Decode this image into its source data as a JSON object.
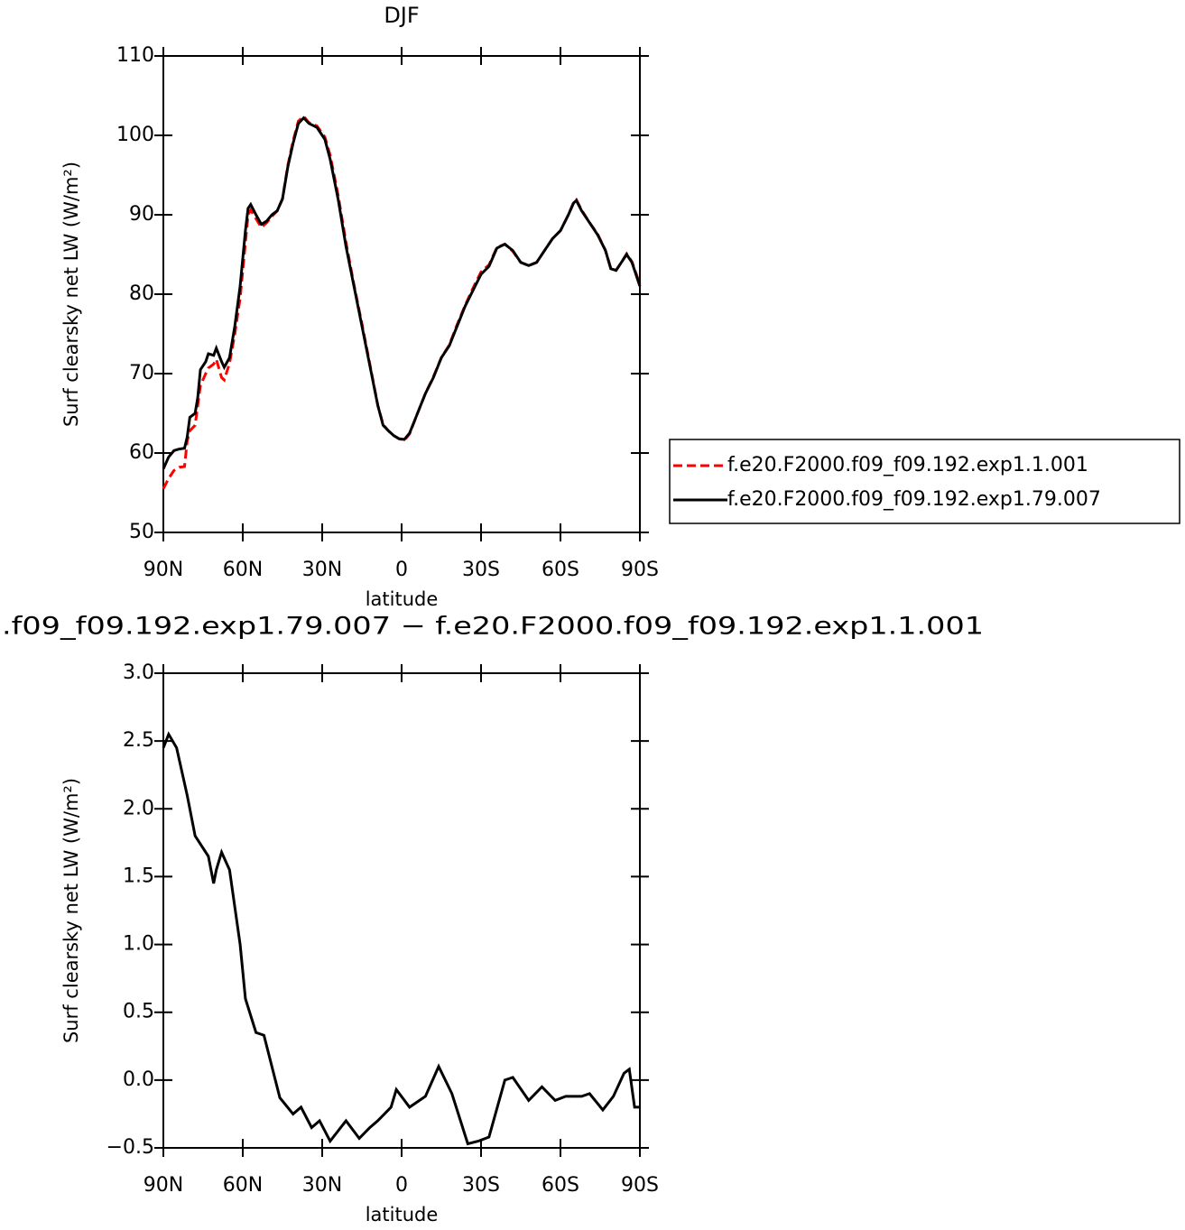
{
  "chart_data": [
    {
      "type": "line",
      "title": "DJF",
      "x_label": "latitude",
      "y_label": "Surf clearsky net LW (W/m²)",
      "x": [
        90,
        88,
        86,
        84,
        82,
        81,
        80,
        78,
        77,
        76,
        74,
        73,
        71,
        70,
        68,
        67,
        65,
        63,
        61,
        59,
        58,
        57,
        55,
        53,
        51,
        49,
        47,
        45,
        43,
        41,
        39,
        37,
        35,
        32,
        29,
        27,
        24,
        21,
        18,
        15,
        12,
        9,
        7,
        5,
        3,
        1,
        -1,
        -3,
        -6,
        -9,
        -12,
        -15,
        -18,
        -21,
        -24,
        -27,
        -30,
        -33,
        -36,
        -39,
        -42,
        -45,
        -48,
        -51,
        -54,
        -57,
        -60,
        -63,
        -65,
        -66,
        -68,
        -71,
        -74,
        -77,
        -79,
        -81,
        -83,
        -85,
        -87,
        -89,
        -90
      ],
      "series": [
        {
          "name": "f.e20.F2000.f09_f09.192.exp1.1.001",
          "color": "#ff0000",
          "dashed": true,
          "values": [
            55.5,
            56.8,
            57.8,
            58.2,
            58.3,
            61.5,
            62.8,
            63.5,
            66,
            68.5,
            70,
            70.7,
            71.2,
            71.8,
            69.5,
            69.2,
            71.3,
            75,
            79.5,
            86.5,
            90,
            90.6,
            89.5,
            88.4,
            89,
            89.8,
            90.5,
            92,
            96.2,
            99.3,
            101.8,
            102.4,
            101.6,
            101.2,
            99.8,
            97.5,
            92.5,
            86.5,
            81.2,
            76.3,
            71.2,
            66,
            63.6,
            62.8,
            62.2,
            61.8,
            61.6,
            62.4,
            65,
            67.5,
            69.6,
            72,
            73.6,
            76.2,
            78.6,
            80.8,
            82.8,
            83.7,
            85.9,
            86.3,
            85.4,
            84,
            83.6,
            84,
            85.5,
            87,
            88,
            90,
            91.6,
            91.9,
            90.6,
            89,
            87.6,
            85.5,
            83.3,
            83,
            84,
            85.1,
            84.1,
            82.2,
            81.2
          ]
        },
        {
          "name": "f.e20.F2000.f09_f09.192.exp1.79.007",
          "color": "#000000",
          "dashed": false,
          "values": [
            58,
            59.5,
            60.3,
            60.5,
            60.6,
            62,
            64.5,
            65,
            67,
            70.5,
            71.5,
            72.5,
            72.3,
            73.2,
            71.5,
            70.8,
            72,
            76,
            81,
            88,
            90.8,
            91.3,
            90,
            88.8,
            89.2,
            90,
            90.5,
            92,
            96,
            99,
            101.5,
            102.2,
            101.5,
            101,
            99.5,
            97,
            92,
            86,
            81,
            76,
            71,
            66,
            63.5,
            62.8,
            62.2,
            61.8,
            61.7,
            62.5,
            65,
            67.5,
            69.5,
            72,
            73.5,
            76,
            78.5,
            80.5,
            82.5,
            83.5,
            85.8,
            86.3,
            85.5,
            84,
            83.6,
            84,
            85.5,
            87,
            88,
            90,
            91.5,
            91.8,
            90.5,
            89,
            87.5,
            85.5,
            83.2,
            83,
            84,
            85,
            84,
            82,
            81
          ]
        }
      ],
      "xlim": [
        90,
        -90
      ],
      "xticks": [
        {
          "value": 90,
          "label": "90N"
        },
        {
          "value": 60,
          "label": "60N"
        },
        {
          "value": 30,
          "label": "30N"
        },
        0,
        {
          "value": -30,
          "label": "30S"
        },
        {
          "value": -60,
          "label": "60S"
        },
        {
          "value": -90,
          "label": "90S"
        }
      ],
      "ylim": [
        50,
        110
      ],
      "yticks": [
        50,
        60,
        70,
        80,
        90,
        100,
        110
      ],
      "legend": "right"
    },
    {
      "type": "line",
      "title": ".f09_f09.192.exp1.79.007 − f.e20.F2000.f09_f09.192.exp1.1.001",
      "x_label": "latitude",
      "y_label": "Surf clearsky net LW (W/m²)",
      "x": [
        90,
        89,
        88,
        85,
        81,
        78,
        73,
        71,
        70,
        68,
        65,
        61,
        59,
        55,
        52,
        49,
        46,
        41,
        38,
        34,
        31,
        27,
        21,
        16,
        12,
        9,
        4,
        2,
        -3,
        -9,
        -14,
        -19,
        -25,
        -29,
        -33,
        -39,
        -42,
        -48,
        -53,
        -58,
        -62,
        -68,
        -71,
        -76,
        -80,
        -84,
        -86,
        -88,
        -90
      ],
      "series": [
        {
          "name": null,
          "color": "#000000",
          "dashed": false,
          "values": [
            2.45,
            2.5,
            2.55,
            2.45,
            2.1,
            1.8,
            1.65,
            1.45,
            1.55,
            1.68,
            1.55,
            1.0,
            0.6,
            0.35,
            0.33,
            0.1,
            -0.13,
            -0.25,
            -0.2,
            -0.35,
            -0.3,
            -0.45,
            -0.3,
            -0.43,
            -0.35,
            -0.3,
            -0.2,
            -0.07,
            -0.2,
            -0.12,
            0.1,
            -0.1,
            -0.47,
            -0.45,
            -0.42,
            0.0,
            0.02,
            -0.15,
            -0.05,
            -0.15,
            -0.12,
            -0.12,
            -0.1,
            -0.22,
            -0.12,
            0.05,
            0.08,
            -0.2,
            -0.2
          ]
        }
      ],
      "xlim": [
        90,
        -90
      ],
      "xticks": [
        {
          "value": 90,
          "label": "90N"
        },
        {
          "value": 60,
          "label": "60N"
        },
        {
          "value": 30,
          "label": "30N"
        },
        0,
        {
          "value": -30,
          "label": "30S"
        },
        {
          "value": -60,
          "label": "60S"
        },
        {
          "value": -90,
          "label": "90S"
        }
      ],
      "ylim": [
        -0.5,
        3
      ],
      "yticks": [
        {
          "value": -0.5,
          "label": "−0.5"
        },
        {
          "value": 0,
          "label": "0.0"
        },
        0.5,
        {
          "value": 1,
          "label": "1.0"
        },
        1.5,
        {
          "value": 2,
          "label": "2.0"
        },
        2.5,
        {
          "value": 3,
          "label": "3.0"
        }
      ]
    }
  ]
}
